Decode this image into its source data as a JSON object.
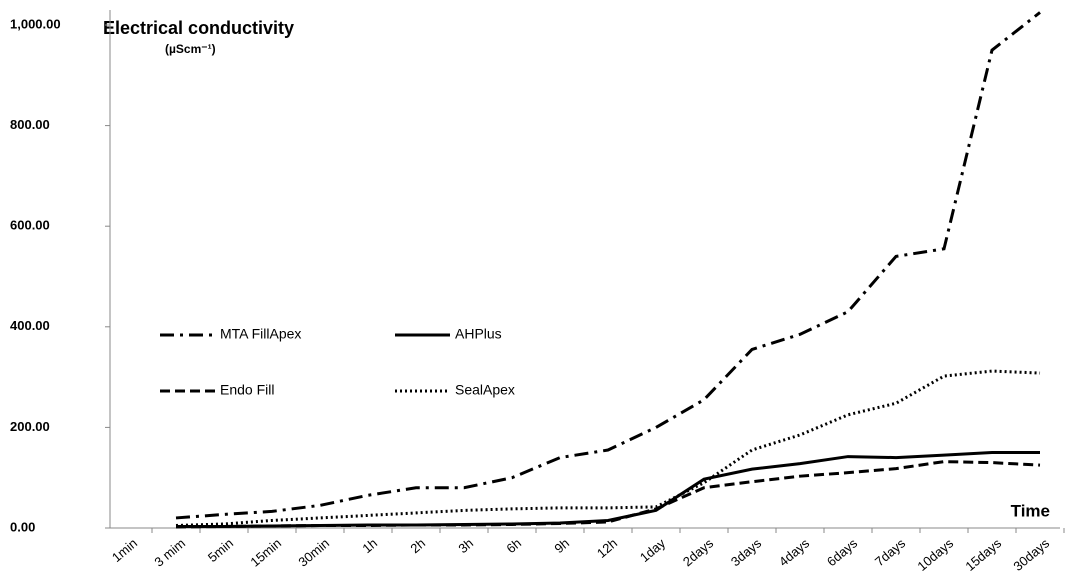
{
  "chart_data": {
    "type": "line",
    "y_label": "Electrical conductivity",
    "y_unit": "(µScm⁻¹)",
    "x_label": "Time",
    "categories": [
      "1min",
      "3 mim",
      "5min",
      "15min",
      "30min",
      "1h",
      "2h",
      "3h",
      "6h",
      "9h",
      "12h",
      "1day",
      "2days",
      "3days",
      "4days",
      "6days",
      "7days",
      "10days",
      "15days",
      "30days"
    ],
    "series": [
      {
        "name": "MTA FillApex",
        "color": "#000000",
        "dash": "14,6,3,6",
        "values": [
          null,
          20,
          27,
          33,
          45,
          65,
          80,
          80,
          100,
          140,
          155,
          200,
          255,
          355,
          385,
          430,
          540,
          555,
          950,
          1025
        ]
      },
      {
        "name": "AHPlus",
        "color": "#000000",
        "dash": "none",
        "values": [
          null,
          3,
          3,
          4,
          5,
          6,
          6,
          7,
          8,
          10,
          15,
          35,
          97,
          117,
          128,
          142,
          140,
          145,
          150,
          150
        ]
      },
      {
        "name": "Endo Fill",
        "color": "#000000",
        "dash": "10,5",
        "values": [
          null,
          2,
          3,
          4,
          5,
          5,
          6,
          6,
          7,
          9,
          12,
          38,
          80,
          92,
          103,
          110,
          118,
          132,
          130,
          125
        ]
      },
      {
        "name": "SealApex",
        "color": "#000000",
        "dash": "2,3",
        "values": [
          null,
          5,
          8,
          15,
          20,
          25,
          30,
          35,
          38,
          40,
          40,
          42,
          90,
          155,
          185,
          225,
          248,
          302,
          312,
          308
        ]
      }
    ],
    "ylim": [
      0,
      1000
    ],
    "yticks": [
      {
        "value": 0,
        "label": "0.00"
      },
      {
        "value": 200,
        "label": "200.00"
      },
      {
        "value": 400,
        "label": "400.00"
      },
      {
        "value": 600,
        "label": "600.00"
      },
      {
        "value": 800,
        "label": "800.00"
      },
      {
        "value": 1000,
        "label": "1,000.00"
      }
    ]
  }
}
